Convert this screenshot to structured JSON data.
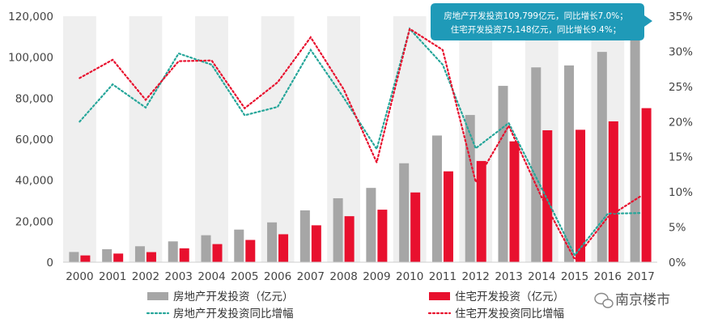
{
  "chart_data": {
    "type": "bar",
    "categories": [
      "2000",
      "2001",
      "2002",
      "2003",
      "2004",
      "2005",
      "2006",
      "2007",
      "2008",
      "2009",
      "2010",
      "2011",
      "2012",
      "2013",
      "2014",
      "2015",
      "2016",
      "2017"
    ],
    "y_left": {
      "ylim": [
        0,
        120000
      ],
      "ticks": [
        "0",
        "20,000",
        "40,000",
        "60,000",
        "80,000",
        "100,000",
        "120,000"
      ]
    },
    "y_right": {
      "ylim": [
        0,
        35
      ],
      "ticks": [
        "0%",
        "5%",
        "10%",
        "15%",
        "20%",
        "25%",
        "30%",
        "35%"
      ]
    },
    "series": [
      {
        "name": "房地产开发投资（亿元）",
        "type": "bar",
        "axis": "left",
        "color": "#a6a6a6",
        "values": [
          4984,
          6344,
          7791,
          10154,
          13158,
          15909,
          19423,
          25289,
          31203,
          36242,
          48259,
          61797,
          71804,
          86013,
          95036,
          95979,
          102581,
          109799
        ]
      },
      {
        "name": "住宅开发投资（亿元）",
        "type": "bar",
        "axis": "left",
        "color": "#e8102e",
        "values": [
          3312,
          4217,
          4920,
          6777,
          8837,
          10861,
          13638,
          18005,
          22441,
          25619,
          34026,
          44320,
          49374,
          58951,
          64352,
          64595,
          68704,
          75148
        ]
      },
      {
        "name": "房地产开发投资同比增幅",
        "type": "line",
        "axis": "right",
        "style": "dotted",
        "color": "#26a69a",
        "values": [
          20,
          25.3,
          22,
          29.7,
          28.1,
          20.9,
          22.1,
          30.2,
          23.4,
          16.1,
          33.2,
          28.1,
          16.2,
          19.8,
          10.5,
          1,
          6.9,
          7
        ]
      },
      {
        "name": "住宅开发投资同比增幅",
        "type": "line",
        "axis": "right",
        "style": "dotted",
        "color": "#e8102e",
        "values": [
          26.2,
          28.8,
          23.1,
          28.6,
          28.7,
          21.9,
          25.6,
          32,
          24.6,
          14.2,
          33.2,
          30.2,
          11.4,
          19.4,
          9.2,
          0.4,
          6.4,
          9.4
        ]
      }
    ],
    "legend": {
      "placement": "bottom",
      "items": [
        "房地产开发投资（亿元）",
        "住宅开发投资（亿元）",
        "房地产开发投资同比增幅",
        "住宅开发投资同比增幅"
      ]
    },
    "annotation": {
      "lines": [
        "房地产开发投资109,799亿元，同比增长7.0%；",
        "住宅开发投资75,148亿元，同比增长9.4%；"
      ]
    },
    "grid": false,
    "alternating_bands": true
  },
  "watermark": {
    "text": "南京楼市"
  },
  "colors": {
    "band": "#efefef",
    "axis_text": "#444444",
    "callout": "#1f9ab8"
  }
}
